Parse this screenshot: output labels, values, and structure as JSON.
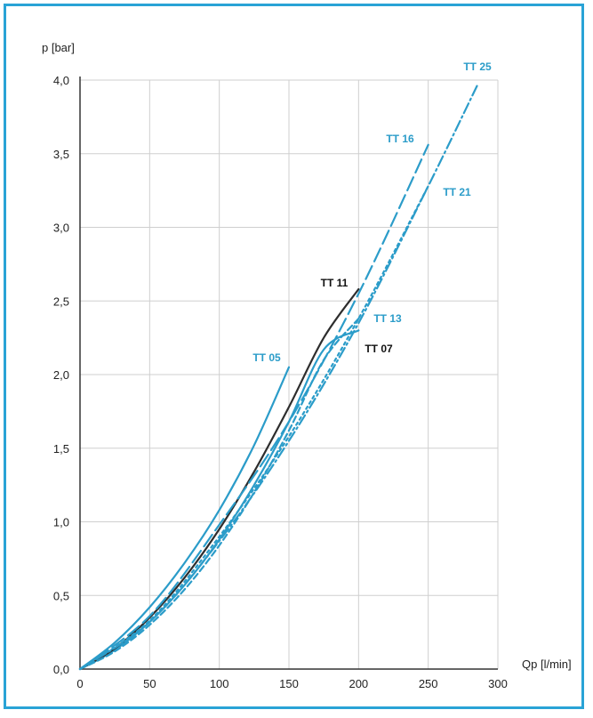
{
  "chart_data": {
    "type": "line",
    "xlabel": "Qp [l/min]",
    "ylabel": "p [bar]",
    "xlim": [
      0,
      300
    ],
    "ylim": [
      0,
      4.0
    ],
    "x_ticks": [
      "0",
      "50",
      "100",
      "150",
      "200",
      "250",
      "300"
    ],
    "y_ticks": [
      "0,0",
      "0,5",
      "1,0",
      "1,5",
      "2,0",
      "2,5",
      "3,0",
      "3,5",
      "4,0"
    ],
    "grid": true,
    "series": [
      {
        "name": "TT 05",
        "color": "#2b9cc9",
        "dash": "solid",
        "label_color": "#2b9cc9",
        "x": [
          0,
          25,
          50,
          75,
          100,
          125,
          150
        ],
        "y": [
          0,
          0.18,
          0.42,
          0.72,
          1.08,
          1.52,
          2.05
        ]
      },
      {
        "name": "TT 07",
        "color": "#2b9cc9",
        "dash": "solid",
        "label_color": "#111111",
        "x": [
          0,
          25,
          50,
          75,
          100,
          125,
          150,
          175,
          200
        ],
        "y": [
          0,
          0.13,
          0.32,
          0.57,
          0.88,
          1.25,
          1.68,
          2.17,
          2.3
        ]
      },
      {
        "name": "TT 11",
        "color": "#2d2d2d",
        "dash": "solid",
        "label_color": "#111111",
        "x": [
          0,
          25,
          50,
          75,
          100,
          125,
          150,
          175,
          200
        ],
        "y": [
          0,
          0.14,
          0.35,
          0.62,
          0.95,
          1.34,
          1.78,
          2.25,
          2.58
        ]
      },
      {
        "name": "TT 13",
        "color": "#2b9cc9",
        "dash": "dash",
        "label_color": "#2b9cc9",
        "x": [
          0,
          25,
          50,
          75,
          100,
          125,
          150,
          175,
          200
        ],
        "y": [
          0,
          0.12,
          0.3,
          0.54,
          0.84,
          1.2,
          1.62,
          2.1,
          2.38
        ]
      },
      {
        "name": "TT 16",
        "color": "#2b9cc9",
        "dash": "longdash",
        "label_color": "#2b9cc9",
        "x": [
          0,
          50,
          100,
          150,
          200,
          250
        ],
        "y": [
          0,
          0.36,
          0.98,
          1.68,
          2.55,
          3.56
        ]
      },
      {
        "name": "TT 21",
        "color": "#2b9cc9",
        "dash": "dot",
        "label_color": "#2b9cc9",
        "x": [
          0,
          50,
          100,
          150,
          200,
          250
        ],
        "y": [
          0,
          0.33,
          0.9,
          1.58,
          2.38,
          3.28
        ]
      },
      {
        "name": "TT 25",
        "color": "#2b9cc9",
        "dash": "dashdot",
        "label_color": "#2b9cc9",
        "x": [
          0,
          50,
          100,
          150,
          200,
          250,
          285
        ],
        "y": [
          0,
          0.32,
          0.87,
          1.55,
          2.35,
          3.28,
          3.96
        ]
      }
    ]
  }
}
